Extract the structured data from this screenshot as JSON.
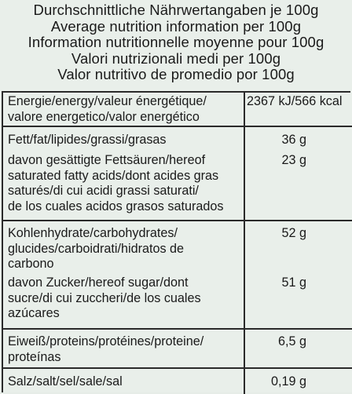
{
  "header": {
    "lines": [
      "Durchschnittliche Nährwertangaben je 100g",
      "Average nutrition information per 100g",
      "Information nutritionnelle moyenne pour 100g",
      "Valori nutrizionali medi per 100g",
      "Valor nutritivo de promedio por 100g"
    ]
  },
  "rows": [
    {
      "label": [
        "Energie/energy/valeur énergétique/",
        "valore energetico/valor energético"
      ],
      "value": "2367 kJ/566 kcal"
    },
    {
      "label": [
        "Fett/fat/lipides/grassi/grasas"
      ],
      "value": "36 g"
    },
    {
      "label": [
        "davon gesättigte Fettsäuren/hereof",
        "saturated fatty acids/dont acides gras",
        "saturés/di cui acidi grassi saturati/",
        "de los cuales acidos grasos saturados"
      ],
      "value": "23 g"
    },
    {
      "label": [
        "Kohlenhydrate/carbohydrates/",
        "glucides/carboidrati/hidratos de",
        "carbono"
      ],
      "value": "52 g"
    },
    {
      "label": [
        "davon Zucker/hereof sugar/dont",
        "sucre/di cui zuccheri/de los cuales",
        "azúcares"
      ],
      "value": "51 g"
    },
    {
      "label": [
        "Eiweiß/proteins/protéines/proteine/",
        "proteínas"
      ],
      "value": "6,5 g"
    },
    {
      "label": [
        "Salz/salt/sel/sale/sal"
      ],
      "value": "0,19 g"
    }
  ]
}
